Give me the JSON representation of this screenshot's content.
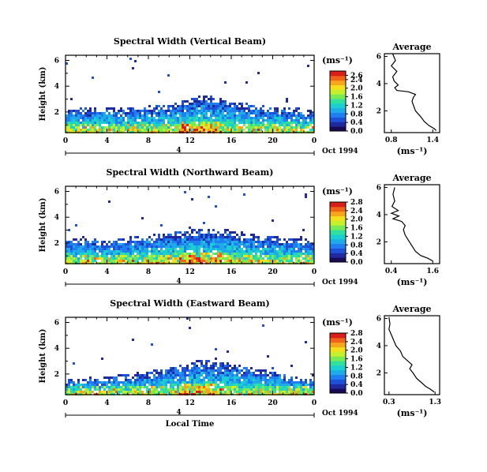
{
  "figure": {
    "ylabel": "Height (km)",
    "xlabel": "Local Time",
    "date_label": "Oct 1994",
    "day_marker": "4",
    "colorbar_unit": "(ms⁻¹)",
    "average_title": "Average",
    "average_xlabel": "(ms⁻¹)",
    "colors": [
      "#1a0a55",
      "#1f2a9e",
      "#1f51d8",
      "#1f7ef0",
      "#1faae8",
      "#19cfcf",
      "#2fe09e",
      "#78ea55",
      "#c5f02e",
      "#f4df1d",
      "#f6a61d",
      "#f0641a",
      "#d81f19"
    ]
  },
  "chart_data": [
    {
      "type": "heatmap",
      "title": "Spectral Width (Vertical Beam)",
      "xlabel": "",
      "ylabel": "Height (km)",
      "x_ticks": [
        "0",
        "4",
        "8",
        "12",
        "16",
        "20",
        "0"
      ],
      "y_ticks": [
        "6",
        "4",
        "2"
      ],
      "xlim": [
        0,
        24
      ],
      "ylim": [
        0.4,
        6.4
      ],
      "grid": false,
      "colorbar_ticks": [
        "2.6",
        "2.4",
        "2.0",
        "1.6",
        "1.2",
        "0.8",
        "0.4",
        "0.0"
      ],
      "colorbar_range": [
        0.0,
        2.8
      ],
      "echo_top_km": [
        [
          0,
          2.2
        ],
        [
          2,
          2.3
        ],
        [
          4,
          2.4
        ],
        [
          6,
          2.3
        ],
        [
          8,
          2.5
        ],
        [
          10,
          2.6
        ],
        [
          12,
          3.0
        ],
        [
          13,
          3.3
        ],
        [
          14,
          3.2
        ],
        [
          16,
          2.8
        ],
        [
          18,
          2.6
        ],
        [
          20,
          2.4
        ],
        [
          22,
          2.3
        ],
        [
          24,
          2.2
        ]
      ],
      "average_profile": {
        "title": "Average",
        "xlabel": "(ms⁻¹)",
        "x_ticks": [
          "0.8",
          "1.4"
        ],
        "y_ticks": [
          "6",
          "4",
          "2"
        ],
        "xlim": [
          0.7,
          1.5
        ],
        "ylim": [
          0.4,
          6.2
        ],
        "points": [
          [
            0.82,
            6.2
          ],
          [
            0.86,
            5.7
          ],
          [
            0.8,
            5.3
          ],
          [
            0.88,
            4.9
          ],
          [
            0.82,
            4.5
          ],
          [
            0.84,
            4.2
          ],
          [
            0.9,
            3.9
          ],
          [
            0.85,
            3.7
          ],
          [
            0.88,
            3.5
          ],
          [
            1.05,
            3.4
          ],
          [
            1.15,
            3.2
          ],
          [
            1.12,
            3.0
          ],
          [
            1.1,
            2.7
          ],
          [
            1.12,
            2.4
          ],
          [
            1.15,
            2.0
          ],
          [
            1.22,
            1.6
          ],
          [
            1.28,
            1.2
          ],
          [
            1.35,
            0.9
          ],
          [
            1.42,
            0.7
          ],
          [
            1.45,
            0.55
          ]
        ]
      }
    },
    {
      "type": "heatmap",
      "title": "Spectral Width (Northward Beam)",
      "xlabel": "",
      "ylabel": "Height (km)",
      "x_ticks": [
        "0",
        "4",
        "8",
        "12",
        "16",
        "20",
        "0"
      ],
      "y_ticks": [
        "6",
        "4",
        "2"
      ],
      "xlim": [
        0,
        24
      ],
      "ylim": [
        0.4,
        6.4
      ],
      "grid": false,
      "colorbar_ticks": [
        "2.8",
        "2.4",
        "2.0",
        "1.6",
        "1.2",
        "0.8",
        "0.4",
        "0.0"
      ],
      "colorbar_range": [
        0.0,
        2.8
      ],
      "echo_top_km": [
        [
          0,
          2.3
        ],
        [
          2,
          2.4
        ],
        [
          4,
          2.2
        ],
        [
          6,
          2.5
        ],
        [
          8,
          2.6
        ],
        [
          10,
          2.8
        ],
        [
          12,
          3.0
        ],
        [
          14,
          3.1
        ],
        [
          16,
          3.0
        ],
        [
          18,
          2.7
        ],
        [
          20,
          2.5
        ],
        [
          22,
          2.4
        ],
        [
          24,
          2.2
        ]
      ],
      "average_profile": {
        "title": "Average",
        "xlabel": "(ms⁻¹)",
        "x_ticks": [
          "0.4",
          "1.6"
        ],
        "y_ticks": [
          "6",
          "4",
          "2"
        ],
        "xlim": [
          0.2,
          1.8
        ],
        "ylim": [
          0.4,
          6.2
        ],
        "points": [
          [
            0.5,
            6.0
          ],
          [
            0.45,
            5.5
          ],
          [
            0.5,
            5.0
          ],
          [
            0.42,
            4.6
          ],
          [
            0.6,
            4.3
          ],
          [
            0.4,
            4.1
          ],
          [
            0.62,
            3.9
          ],
          [
            0.45,
            3.7
          ],
          [
            0.7,
            3.5
          ],
          [
            0.8,
            3.2
          ],
          [
            0.75,
            2.9
          ],
          [
            0.8,
            2.5
          ],
          [
            0.9,
            2.1
          ],
          [
            1.0,
            1.7
          ],
          [
            1.1,
            1.3
          ],
          [
            1.25,
            1.0
          ],
          [
            1.45,
            0.8
          ],
          [
            1.6,
            0.6
          ]
        ]
      }
    },
    {
      "type": "heatmap",
      "title": "Spectral Width (Eastward Beam)",
      "xlabel": "Local Time",
      "ylabel": "Height (km)",
      "x_ticks": [
        "0",
        "4",
        "8",
        "12",
        "16",
        "20",
        "0"
      ],
      "y_ticks": [
        "6",
        "4",
        "2"
      ],
      "xlim": [
        0,
        24
      ],
      "ylim": [
        0.4,
        6.4
      ],
      "grid": false,
      "colorbar_ticks": [
        "2.8",
        "2.4",
        "2.0",
        "1.6",
        "1.2",
        "0.8",
        "0.4",
        "0.0"
      ],
      "colorbar_range": [
        0.0,
        2.8
      ],
      "echo_top_km": [
        [
          0,
          1.5
        ],
        [
          2,
          1.7
        ],
        [
          4,
          1.8
        ],
        [
          6,
          2.0
        ],
        [
          8,
          2.2
        ],
        [
          10,
          2.5
        ],
        [
          12,
          2.8
        ],
        [
          13,
          3.2
        ],
        [
          14,
          3.0
        ],
        [
          16,
          2.8
        ],
        [
          18,
          2.5
        ],
        [
          20,
          2.2
        ],
        [
          22,
          1.8
        ],
        [
          24,
          1.5
        ]
      ],
      "average_profile": {
        "title": "Average",
        "xlabel": "(ms⁻¹)",
        "x_ticks": [
          "0.3",
          "1.3"
        ],
        "y_ticks": [
          "6",
          "4",
          "2"
        ],
        "xlim": [
          0.2,
          1.4
        ],
        "ylim": [
          0.4,
          6.2
        ],
        "points": [
          [
            0.3,
            6.1
          ],
          [
            0.32,
            5.6
          ],
          [
            0.3,
            5.2
          ],
          [
            0.35,
            4.8
          ],
          [
            0.4,
            4.4
          ],
          [
            0.45,
            4.0
          ],
          [
            0.55,
            3.6
          ],
          [
            0.6,
            3.2
          ],
          [
            0.7,
            2.9
          ],
          [
            0.8,
            2.6
          ],
          [
            0.75,
            2.3
          ],
          [
            0.82,
            2.0
          ],
          [
            0.9,
            1.6
          ],
          [
            1.0,
            1.3
          ],
          [
            1.1,
            1.0
          ],
          [
            1.2,
            0.8
          ],
          [
            1.28,
            0.6
          ]
        ]
      }
    }
  ]
}
